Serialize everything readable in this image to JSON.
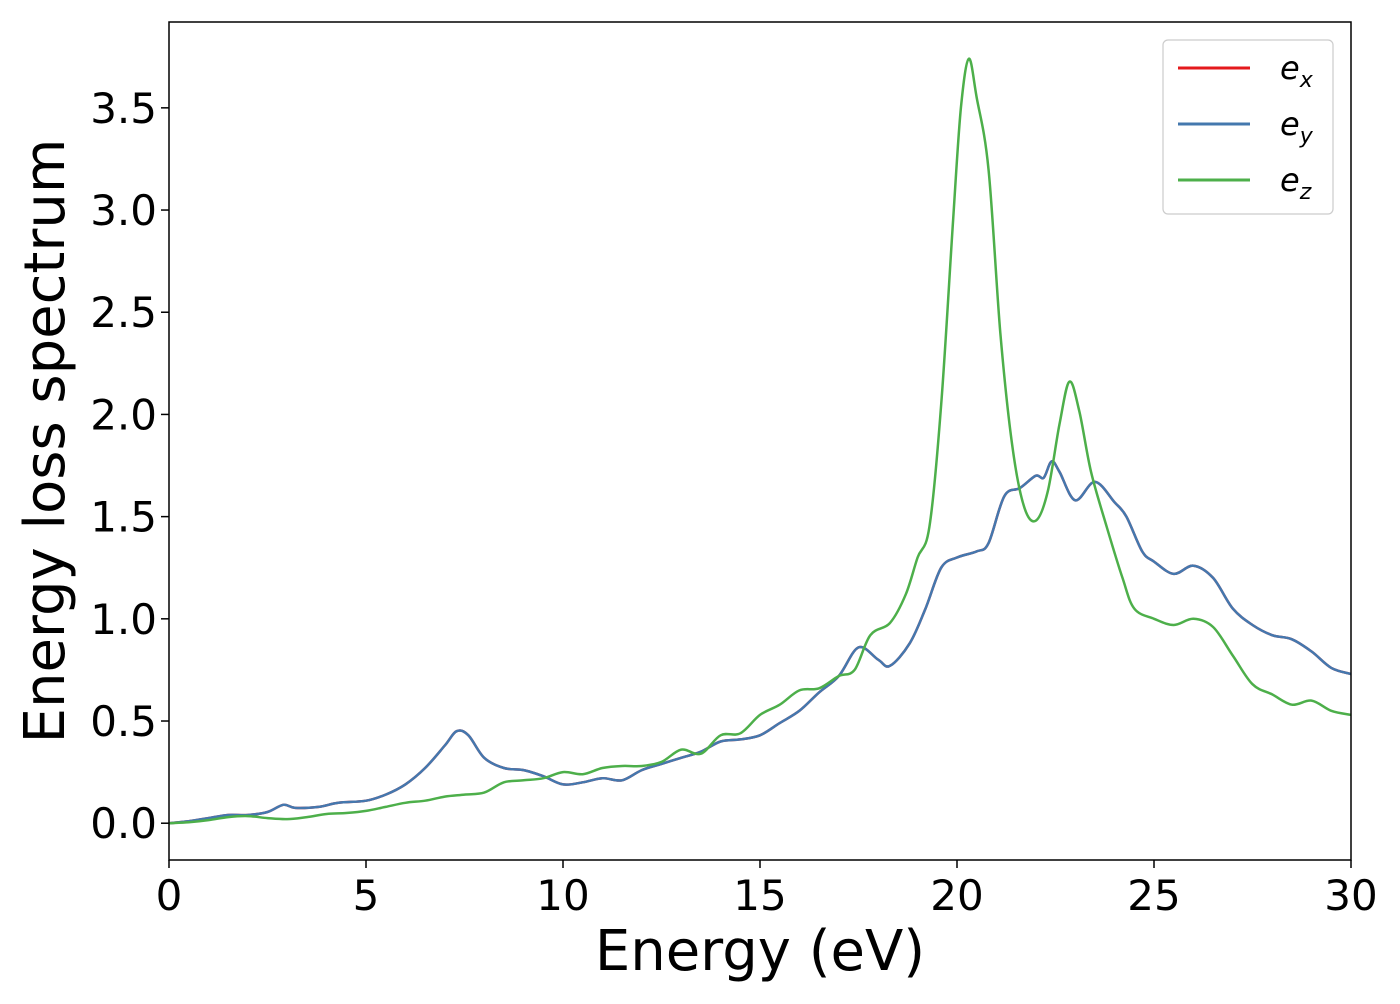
{
  "chart_data": {
    "type": "line",
    "xlabel": "Energy (eV)",
    "ylabel": "Energy loss spectrum",
    "xlim": [
      0,
      30
    ],
    "ylim": [
      -0.18,
      3.92
    ],
    "xticks": [
      0,
      5,
      10,
      15,
      20,
      25,
      30
    ],
    "xtick_labels": [
      "0",
      "5",
      "10",
      "15",
      "20",
      "25",
      "30"
    ],
    "yticks": [
      0.0,
      0.5,
      1.0,
      1.5,
      2.0,
      2.5,
      3.0,
      3.5
    ],
    "ytick_labels": [
      "0.0",
      "0.5",
      "1.0",
      "1.5",
      "2.0",
      "2.5",
      "3.0",
      "3.5"
    ],
    "grid": false,
    "legend_position": "top-right",
    "series": [
      {
        "name": "e_x",
        "label_base": "e",
        "label_sub": "x",
        "color": "#e41a1c",
        "points": [
          [
            0,
            0
          ],
          [
            0.5,
            0.01
          ],
          [
            1,
            0.025
          ],
          [
            1.5,
            0.04
          ],
          [
            2,
            0.04
          ],
          [
            2.5,
            0.055
          ],
          [
            2.9,
            0.09
          ],
          [
            3.2,
            0.075
          ],
          [
            3.8,
            0.08
          ],
          [
            4.3,
            0.1
          ],
          [
            5,
            0.11
          ],
          [
            5.5,
            0.14
          ],
          [
            6,
            0.19
          ],
          [
            6.5,
            0.27
          ],
          [
            7,
            0.38
          ],
          [
            7.3,
            0.45
          ],
          [
            7.6,
            0.43
          ],
          [
            8,
            0.32
          ],
          [
            8.5,
            0.27
          ],
          [
            9,
            0.26
          ],
          [
            9.5,
            0.23
          ],
          [
            10,
            0.19
          ],
          [
            10.5,
            0.2
          ],
          [
            11,
            0.22
          ],
          [
            11.5,
            0.21
          ],
          [
            12,
            0.26
          ],
          [
            12.5,
            0.29
          ],
          [
            13,
            0.32
          ],
          [
            13.5,
            0.35
          ],
          [
            14,
            0.4
          ],
          [
            14.5,
            0.41
          ],
          [
            15,
            0.43
          ],
          [
            15.5,
            0.49
          ],
          [
            16,
            0.55
          ],
          [
            16.5,
            0.64
          ],
          [
            17,
            0.72
          ],
          [
            17.5,
            0.86
          ],
          [
            18,
            0.8
          ],
          [
            18.3,
            0.77
          ],
          [
            18.8,
            0.88
          ],
          [
            19.2,
            1.05
          ],
          [
            19.6,
            1.25
          ],
          [
            20,
            1.3
          ],
          [
            20.5,
            1.33
          ],
          [
            20.8,
            1.37
          ],
          [
            21.2,
            1.6
          ],
          [
            21.6,
            1.64
          ],
          [
            22,
            1.7
          ],
          [
            22.2,
            1.69
          ],
          [
            22.4,
            1.77
          ],
          [
            22.6,
            1.72
          ],
          [
            23,
            1.58
          ],
          [
            23.5,
            1.67
          ],
          [
            24,
            1.57
          ],
          [
            24.3,
            1.5
          ],
          [
            24.7,
            1.33
          ],
          [
            25,
            1.28
          ],
          [
            25.5,
            1.22
          ],
          [
            26,
            1.26
          ],
          [
            26.5,
            1.2
          ],
          [
            27,
            1.05
          ],
          [
            27.5,
            0.97
          ],
          [
            28,
            0.92
          ],
          [
            28.5,
            0.9
          ],
          [
            29,
            0.84
          ],
          [
            29.5,
            0.76
          ],
          [
            30,
            0.73
          ]
        ]
      },
      {
        "name": "e_y",
        "label_base": "e",
        "label_sub": "y",
        "color": "#4478ae",
        "points": [
          [
            0,
            0
          ],
          [
            0.5,
            0.01
          ],
          [
            1,
            0.025
          ],
          [
            1.5,
            0.04
          ],
          [
            2,
            0.04
          ],
          [
            2.5,
            0.055
          ],
          [
            2.9,
            0.09
          ],
          [
            3.2,
            0.075
          ],
          [
            3.8,
            0.08
          ],
          [
            4.3,
            0.1
          ],
          [
            5,
            0.11
          ],
          [
            5.5,
            0.14
          ],
          [
            6,
            0.19
          ],
          [
            6.5,
            0.27
          ],
          [
            7,
            0.38
          ],
          [
            7.3,
            0.45
          ],
          [
            7.6,
            0.43
          ],
          [
            8,
            0.32
          ],
          [
            8.5,
            0.27
          ],
          [
            9,
            0.26
          ],
          [
            9.5,
            0.23
          ],
          [
            10,
            0.19
          ],
          [
            10.5,
            0.2
          ],
          [
            11,
            0.22
          ],
          [
            11.5,
            0.21
          ],
          [
            12,
            0.26
          ],
          [
            12.5,
            0.29
          ],
          [
            13,
            0.32
          ],
          [
            13.5,
            0.35
          ],
          [
            14,
            0.4
          ],
          [
            14.5,
            0.41
          ],
          [
            15,
            0.43
          ],
          [
            15.5,
            0.49
          ],
          [
            16,
            0.55
          ],
          [
            16.5,
            0.64
          ],
          [
            17,
            0.72
          ],
          [
            17.5,
            0.86
          ],
          [
            18,
            0.8
          ],
          [
            18.3,
            0.77
          ],
          [
            18.8,
            0.88
          ],
          [
            19.2,
            1.05
          ],
          [
            19.6,
            1.25
          ],
          [
            20,
            1.3
          ],
          [
            20.5,
            1.33
          ],
          [
            20.8,
            1.37
          ],
          [
            21.2,
            1.6
          ],
          [
            21.6,
            1.64
          ],
          [
            22,
            1.7
          ],
          [
            22.2,
            1.69
          ],
          [
            22.4,
            1.77
          ],
          [
            22.6,
            1.72
          ],
          [
            23,
            1.58
          ],
          [
            23.5,
            1.67
          ],
          [
            24,
            1.57
          ],
          [
            24.3,
            1.5
          ],
          [
            24.7,
            1.33
          ],
          [
            25,
            1.28
          ],
          [
            25.5,
            1.22
          ],
          [
            26,
            1.26
          ],
          [
            26.5,
            1.2
          ],
          [
            27,
            1.05
          ],
          [
            27.5,
            0.97
          ],
          [
            28,
            0.92
          ],
          [
            28.5,
            0.9
          ],
          [
            29,
            0.84
          ],
          [
            29.5,
            0.76
          ],
          [
            30,
            0.73
          ]
        ]
      },
      {
        "name": "e_z",
        "label_base": "e",
        "label_sub": "z",
        "color": "#4daf4a",
        "points": [
          [
            0,
            0
          ],
          [
            0.5,
            0.005
          ],
          [
            1,
            0.015
          ],
          [
            1.5,
            0.03
          ],
          [
            2,
            0.035
          ],
          [
            2.5,
            0.025
          ],
          [
            3,
            0.02
          ],
          [
            3.5,
            0.03
          ],
          [
            4,
            0.045
          ],
          [
            4.5,
            0.05
          ],
          [
            5,
            0.06
          ],
          [
            5.5,
            0.08
          ],
          [
            6,
            0.1
          ],
          [
            6.5,
            0.11
          ],
          [
            7,
            0.13
          ],
          [
            7.5,
            0.14
          ],
          [
            8,
            0.15
          ],
          [
            8.5,
            0.2
          ],
          [
            9,
            0.21
          ],
          [
            9.5,
            0.22
          ],
          [
            10,
            0.25
          ],
          [
            10.5,
            0.24
          ],
          [
            11,
            0.27
          ],
          [
            11.5,
            0.28
          ],
          [
            12,
            0.28
          ],
          [
            12.5,
            0.3
          ],
          [
            13,
            0.36
          ],
          [
            13.5,
            0.34
          ],
          [
            14,
            0.43
          ],
          [
            14.5,
            0.44
          ],
          [
            15,
            0.53
          ],
          [
            15.5,
            0.58
          ],
          [
            16,
            0.65
          ],
          [
            16.5,
            0.66
          ],
          [
            17,
            0.72
          ],
          [
            17.4,
            0.75
          ],
          [
            17.8,
            0.92
          ],
          [
            18.3,
            0.98
          ],
          [
            18.7,
            1.12
          ],
          [
            19,
            1.3
          ],
          [
            19.3,
            1.45
          ],
          [
            19.6,
            2.05
          ],
          [
            19.9,
            2.95
          ],
          [
            20.1,
            3.5
          ],
          [
            20.3,
            3.74
          ],
          [
            20.5,
            3.55
          ],
          [
            20.8,
            3.2
          ],
          [
            21.1,
            2.4
          ],
          [
            21.4,
            1.85
          ],
          [
            21.7,
            1.55
          ],
          [
            22,
            1.48
          ],
          [
            22.3,
            1.62
          ],
          [
            22.6,
            1.95
          ],
          [
            22.85,
            2.16
          ],
          [
            23.1,
            2.02
          ],
          [
            23.4,
            1.72
          ],
          [
            23.8,
            1.45
          ],
          [
            24.2,
            1.2
          ],
          [
            24.5,
            1.05
          ],
          [
            25,
            1.0
          ],
          [
            25.5,
            0.97
          ],
          [
            26,
            1.0
          ],
          [
            26.5,
            0.96
          ],
          [
            27,
            0.82
          ],
          [
            27.5,
            0.68
          ],
          [
            28,
            0.63
          ],
          [
            28.5,
            0.58
          ],
          [
            29,
            0.6
          ],
          [
            29.5,
            0.55
          ],
          [
            30,
            0.53
          ]
        ]
      }
    ]
  }
}
